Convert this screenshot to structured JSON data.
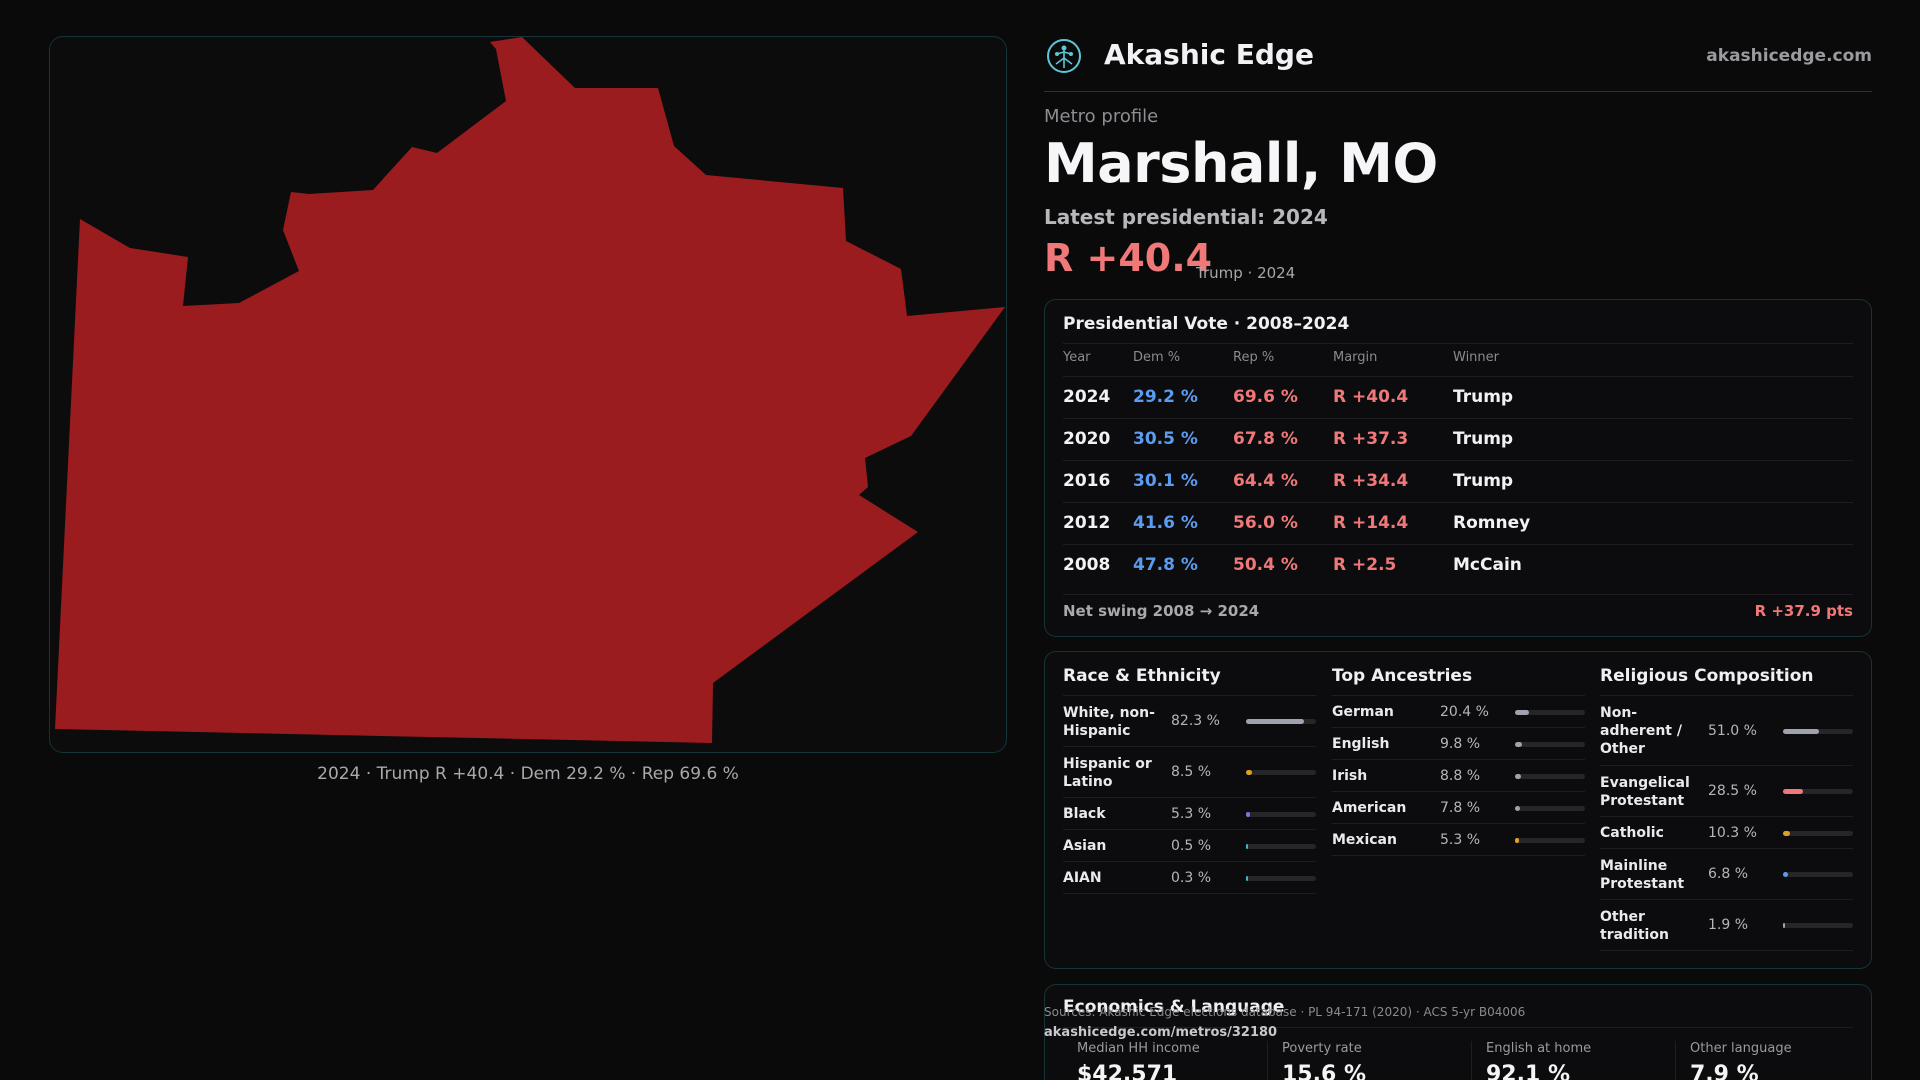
{
  "map": {
    "caption": "2024 · Trump R +40.4 · Dem 29.2 % · Rep 69.6 %",
    "fill_color": "#9b1c1f"
  },
  "brand": {
    "name": "Akashic Edge",
    "url": "akashicedge.com",
    "logo_icon": "tree-of-life-icon"
  },
  "profile": {
    "kicker": "Metro profile",
    "title": "Marshall, MO",
    "latest_label": "Latest presidential: 2024",
    "margin": "R +40.4",
    "margin_sub": "Trump · 2024"
  },
  "presidential": {
    "title": "Presidential Vote · 2008–2024",
    "headers": {
      "year": "Year",
      "dem": "Dem %",
      "rep": "Rep %",
      "margin": "Margin",
      "winner": "Winner"
    },
    "rows": [
      {
        "year": "2024",
        "dem": "29.2 %",
        "rep": "69.6 %",
        "margin": "R +40.4",
        "winner": "Trump"
      },
      {
        "year": "2020",
        "dem": "30.5 %",
        "rep": "67.8 %",
        "margin": "R +37.3",
        "winner": "Trump"
      },
      {
        "year": "2016",
        "dem": "30.1 %",
        "rep": "64.4 %",
        "margin": "R +34.4",
        "winner": "Trump"
      },
      {
        "year": "2012",
        "dem": "41.6 %",
        "rep": "56.0 %",
        "margin": "R +14.4",
        "winner": "Romney"
      },
      {
        "year": "2008",
        "dem": "47.8 %",
        "rep": "50.4 %",
        "margin": "R +2.5",
        "winner": "McCain"
      }
    ],
    "swing_label": "Net swing 2008 → 2024",
    "swing_value": "R +37.9 pts"
  },
  "race": {
    "title": "Race & Ethnicity",
    "items": [
      {
        "label": "White, non-Hispanic",
        "value": "82.3 %",
        "fraction": 0.823,
        "color": "#9ea3ad"
      },
      {
        "label": "Hispanic or Latino",
        "value": "8.5 %",
        "fraction": 0.085,
        "color": "#e0a020"
      },
      {
        "label": "Black",
        "value": "5.3 %",
        "fraction": 0.053,
        "color": "#8a6ee0"
      },
      {
        "label": "Asian",
        "value": "0.5 %",
        "fraction": 0.005,
        "color": "#4fb0c0"
      },
      {
        "label": "AIAN",
        "value": "0.3 %",
        "fraction": 0.003,
        "color": "#4fb0c0"
      }
    ]
  },
  "ancestry": {
    "title": "Top Ancestries",
    "items": [
      {
        "label": "German",
        "value": "20.4 %",
        "fraction": 0.204,
        "color": "#9ea3ad"
      },
      {
        "label": "English",
        "value": "9.8 %",
        "fraction": 0.098,
        "color": "#9ea3ad"
      },
      {
        "label": "Irish",
        "value": "8.8 %",
        "fraction": 0.088,
        "color": "#9ea3ad"
      },
      {
        "label": "American",
        "value": "7.8 %",
        "fraction": 0.078,
        "color": "#9ea3ad"
      },
      {
        "label": "Mexican",
        "value": "5.3 %",
        "fraction": 0.053,
        "color": "#e0a020"
      }
    ]
  },
  "religion": {
    "title": "Religious Composition",
    "items": [
      {
        "label": "Non-adherent / Other",
        "value": "51.0 %",
        "fraction": 0.51,
        "color": "#9ea3ad"
      },
      {
        "label": "Evangelical Protestant",
        "value": "28.5 %",
        "fraction": 0.285,
        "color": "#f07878"
      },
      {
        "label": "Catholic",
        "value": "10.3 %",
        "fraction": 0.103,
        "color": "#e0a020"
      },
      {
        "label": "Mainline Protestant",
        "value": "6.8 %",
        "fraction": 0.068,
        "color": "#5b9cf0"
      },
      {
        "label": "Other tradition",
        "value": "1.9 %",
        "fraction": 0.019,
        "color": "#9ea3ad"
      }
    ]
  },
  "economics": {
    "title": "Economics & Language",
    "stats": [
      {
        "label": "Median HH income",
        "value": "$42,571"
      },
      {
        "label": "Poverty rate",
        "value": "15.6 %"
      },
      {
        "label": "English at home",
        "value": "92.1 %"
      },
      {
        "label": "Other language",
        "value": "7.9 %"
      }
    ]
  },
  "footer": {
    "sources": "Sources: Akashic Edge elections database · PL 94-171 (2020) · ACS 5-yr B04006",
    "url": "akashicedge.com/metros/32180"
  }
}
